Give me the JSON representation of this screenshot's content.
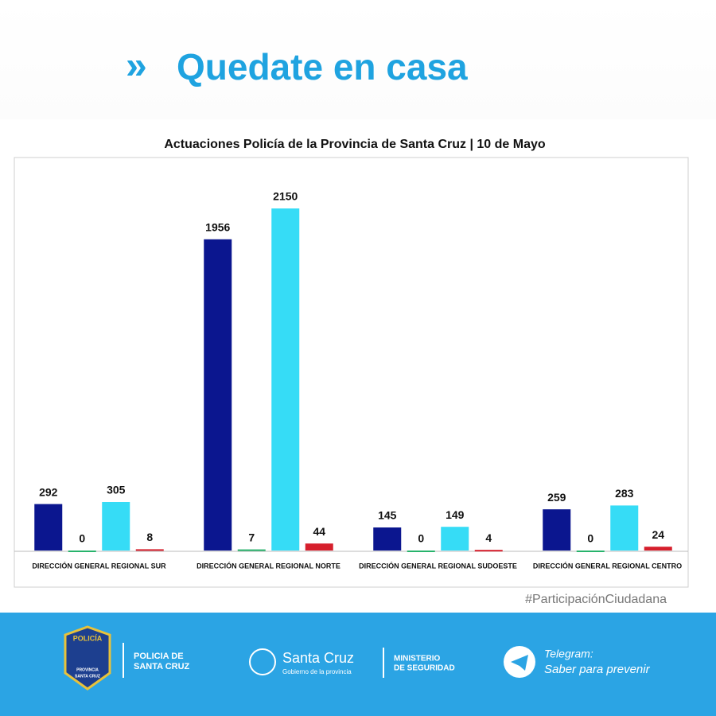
{
  "header": {
    "title": "Quedate en casa"
  },
  "chart_data": {
    "type": "bar",
    "title": "Actuaciones Policía de la Provincia de Santa Cruz | 10 de Mayo",
    "categories": [
      "DIRECCIÓN GENERAL REGIONAL SUR",
      "DIRECCIÓN GENERAL REGIONAL NORTE",
      "DIRECCIÓN GENERAL REGIONAL SUDOESTE",
      "DIRECCIÓN GENERAL REGIONAL CENTRO"
    ],
    "series": [
      {
        "color": "#0b168f",
        "values": [
          292,
          1956,
          145,
          259
        ]
      },
      {
        "color": "#27b36b",
        "values": [
          0,
          7,
          0,
          0
        ]
      },
      {
        "color": "#36dcf6",
        "values": [
          305,
          2150,
          149,
          283
        ]
      },
      {
        "color": "#d61f2c",
        "values": [
          8,
          44,
          4,
          24
        ]
      }
    ],
    "ylim": [
      0,
      2460
    ]
  },
  "hashtag": "#ParticipaciónCiudadana",
  "footer": {
    "badge": [
      "POLICÍA",
      "PROVINCIA",
      "SANTA CRUZ"
    ],
    "police": [
      "POLICIA DE",
      "SANTA CRUZ"
    ],
    "government": [
      "Santa Cruz",
      "Gobierno de la provincia"
    ],
    "ministry": [
      "MINISTERIO",
      "DE SEGURIDAD"
    ],
    "telegram": [
      "Telegram:",
      "Saber para prevenir"
    ]
  }
}
